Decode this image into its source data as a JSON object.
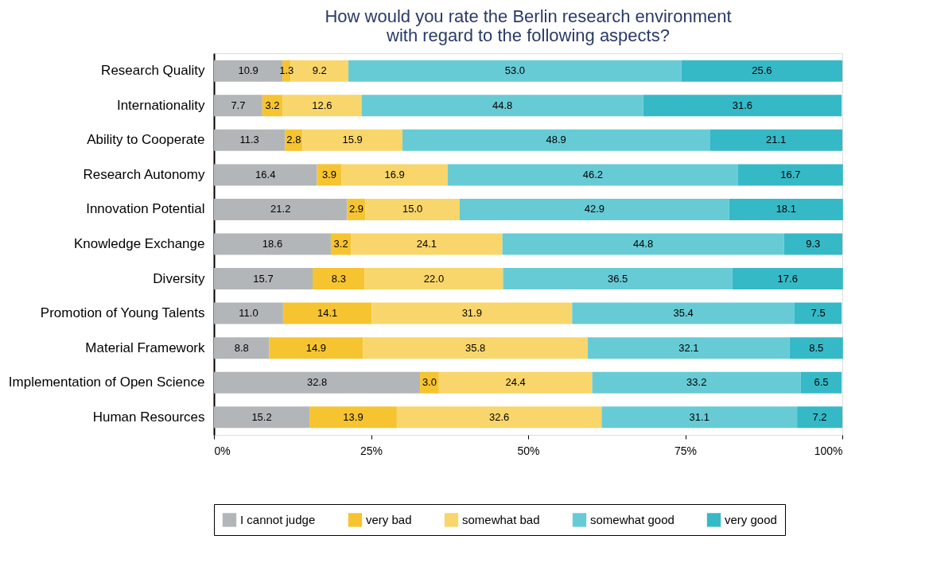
{
  "chart_data": {
    "type": "bar",
    "orientation": "horizontal",
    "stacked": true,
    "grid": false,
    "legend": "bottom",
    "title": "How would you rate the Berlin research environment\nwith regard to the following aspects?",
    "categories": [
      "Research Quality",
      "Internationality",
      "Ability to Cooperate",
      "Research Autonomy",
      "Innovation Potential",
      "Knowledge Exchange",
      "Diversity",
      "Promotion of Young Talents",
      "Material Framework",
      "Implementation of Open Science",
      "Human Resources"
    ],
    "xlim": [
      0,
      100
    ],
    "xticks": [
      {
        "value": 0,
        "label": "0%"
      },
      {
        "value": 25,
        "label": "25%"
      },
      {
        "value": 50,
        "label": "50%"
      },
      {
        "value": 75,
        "label": "75%"
      },
      {
        "value": 100,
        "label": "100%"
      }
    ],
    "series": [
      {
        "name": "I cannot judge",
        "color": "#b3b6b9",
        "values": [
          10.9,
          7.7,
          11.3,
          16.4,
          21.2,
          18.6,
          15.7,
          11.0,
          8.8,
          32.8,
          15.2
        ],
        "value_labels": [
          "10.9",
          "7.7",
          "11.3",
          "16.4",
          "21.2",
          "18.6",
          "15.7",
          "11.0",
          "8.8",
          "32.8",
          "15.2"
        ]
      },
      {
        "name": "very bad",
        "color": "#f6c431",
        "values": [
          1.3,
          3.2,
          2.8,
          3.9,
          2.9,
          3.2,
          8.3,
          14.1,
          14.9,
          3.0,
          13.9
        ],
        "value_labels": [
          "1.3",
          "3.2",
          "2.8",
          "3.9",
          "2.9",
          "3.2",
          "8.3",
          "14.1",
          "14.9",
          "3.0",
          "13.9"
        ]
      },
      {
        "name": "somewhat bad",
        "color": "#f9d66b",
        "values": [
          9.2,
          12.6,
          15.9,
          16.9,
          15.0,
          24.1,
          22.0,
          31.9,
          35.8,
          24.4,
          32.6
        ],
        "value_labels": [
          "9.2",
          "12.6",
          "15.9",
          "16.9",
          "15.0",
          "24.1",
          "22.0",
          "31.9",
          "35.8",
          "24.4",
          "32.6"
        ]
      },
      {
        "name": "somewhat good",
        "color": "#67cbd5",
        "values": [
          53.0,
          44.8,
          48.9,
          46.2,
          42.9,
          44.8,
          36.5,
          35.4,
          32.1,
          33.2,
          31.1
        ],
        "value_labels": [
          "53.0",
          "44.8",
          "48.9",
          "46.2",
          "42.9",
          "44.8",
          "36.5",
          "35.4",
          "32.1",
          "33.2",
          "31.1"
        ]
      },
      {
        "name": "very good",
        "color": "#36b9c6",
        "values": [
          25.6,
          31.6,
          21.1,
          16.7,
          18.1,
          9.3,
          17.6,
          7.5,
          8.5,
          6.5,
          7.2
        ],
        "value_labels": [
          "25.6",
          "31.6",
          "21.1",
          "16.7",
          "18.1",
          "9.3",
          "17.6",
          "7.5",
          "8.5",
          "6.5",
          "7.2"
        ]
      }
    ]
  }
}
